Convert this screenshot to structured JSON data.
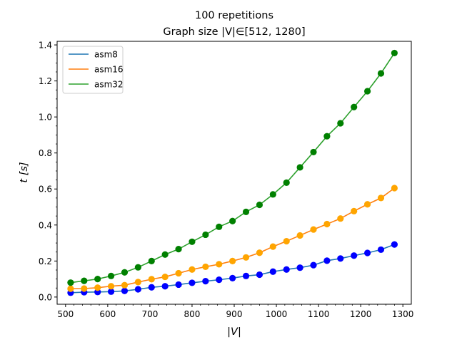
{
  "chart_data": {
    "type": "line",
    "title_line1": "100 repetitions",
    "title_line2": "Graph size |V|∈[512, 1280]",
    "xlabel": "|V|",
    "ylabel": "t  [s]",
    "xlim": [
      480,
      1320
    ],
    "ylim": [
      -0.04,
      1.42
    ],
    "xticks": [
      500,
      600,
      700,
      800,
      900,
      1000,
      1100,
      1200,
      1300
    ],
    "yticks": [
      0.0,
      0.2,
      0.4,
      0.6,
      0.8,
      1.0,
      1.2,
      1.4
    ],
    "x": [
      512,
      544,
      576,
      608,
      640,
      672,
      704,
      736,
      768,
      800,
      832,
      864,
      896,
      928,
      960,
      992,
      1024,
      1056,
      1088,
      1120,
      1152,
      1184,
      1216,
      1248,
      1280
    ],
    "series": [
      {
        "name": "asm8",
        "line_color": "#1f77b4",
        "marker_color": "#0000ff",
        "values": [
          0.024,
          0.027,
          0.028,
          0.03,
          0.034,
          0.043,
          0.054,
          0.06,
          0.069,
          0.079,
          0.088,
          0.096,
          0.105,
          0.117,
          0.124,
          0.141,
          0.153,
          0.163,
          0.177,
          0.202,
          0.214,
          0.23,
          0.245,
          0.263,
          0.292
        ]
      },
      {
        "name": "asm16",
        "line_color": "#ff7f0e",
        "marker_color": "#ffa500",
        "values": [
          0.046,
          0.047,
          0.052,
          0.06,
          0.066,
          0.083,
          0.099,
          0.112,
          0.132,
          0.153,
          0.168,
          0.182,
          0.2,
          0.22,
          0.246,
          0.28,
          0.31,
          0.342,
          0.375,
          0.405,
          0.436,
          0.477,
          0.515,
          0.55,
          0.605
        ]
      },
      {
        "name": "asm32",
        "line_color": "#2ca02c",
        "marker_color": "#008000",
        "values": [
          0.08,
          0.09,
          0.1,
          0.117,
          0.137,
          0.165,
          0.2,
          0.236,
          0.266,
          0.307,
          0.346,
          0.39,
          0.422,
          0.473,
          0.512,
          0.57,
          0.635,
          0.72,
          0.805,
          0.893,
          0.965,
          1.055,
          1.143,
          1.242,
          1.355
        ]
      }
    ],
    "legend": "top-left",
    "grid": false
  }
}
